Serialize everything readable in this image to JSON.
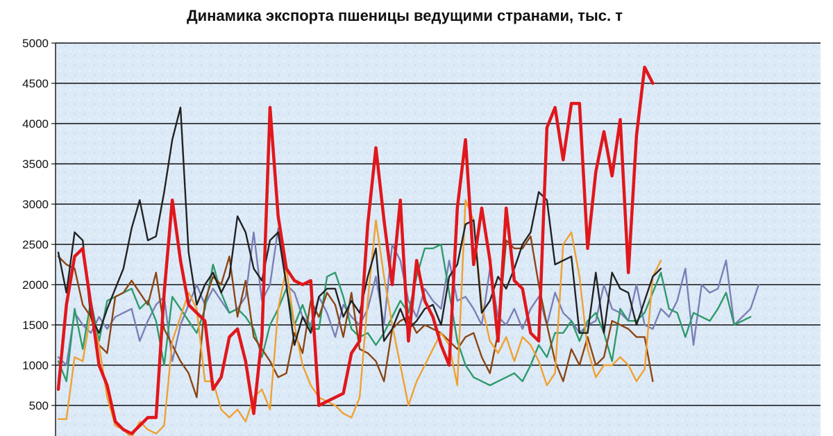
{
  "chart_data": {
    "type": "line",
    "title": "Динамика экспорта  пшеницы ведущими странами,  тыс. т",
    "xlabel": "",
    "ylabel": "",
    "ylim": [
      0,
      5000
    ],
    "yticks": [
      500,
      1000,
      1500,
      2000,
      2500,
      3000,
      3500,
      4000,
      4500,
      5000
    ],
    "grid": true,
    "legend": "none",
    "n_points": 94,
    "series": [
      {
        "color": "#7b7fb6",
        "values": [
          1100,
          1000,
          1650,
          1500,
          1400,
          1600,
          1450,
          1600,
          1650,
          1700,
          1300,
          1550,
          1750,
          1850,
          1050,
          1500,
          1750,
          2000,
          1750,
          1950,
          1800,
          1650,
          1700,
          1850,
          2650,
          1800,
          2000,
          2700,
          2000,
          1900,
          1600,
          1500,
          1850,
          1650,
          1350,
          1750,
          1600,
          1500,
          1700,
          2100,
          1500,
          2500,
          2300,
          1800,
          1600,
          1950,
          1800,
          1700,
          2300,
          1800,
          1850,
          1700,
          1500,
          2200,
          1600,
          1500,
          1700,
          1450,
          1700,
          1850,
          1500,
          1900,
          1650,
          1550,
          1400,
          1500,
          1550,
          2000,
          1700,
          1650,
          1550,
          2000,
          1500,
          1450,
          1700,
          1600,
          1800,
          2200,
          1250,
          2000,
          1900,
          1950,
          2300,
          1500,
          1600,
          1700,
          2000
        ]
      },
      {
        "color": "#2e9a6b",
        "values": [
          1050,
          800,
          1700,
          1200,
          1800,
          1300,
          1800,
          1850,
          1900,
          1950,
          1700,
          1800,
          1550,
          1000,
          1850,
          1700,
          1550,
          1400,
          1700,
          2250,
          1900,
          1650,
          1700,
          1600,
          1450,
          1100,
          1500,
          1700,
          1950,
          1500,
          1750,
          1450,
          1450,
          2100,
          2150,
          1850,
          1450,
          1350,
          1400,
          1250,
          1400,
          1600,
          1800,
          1650,
          2100,
          2450,
          2450,
          2500,
          1900,
          1300,
          1000,
          850,
          800,
          750,
          800,
          850,
          900,
          800,
          1000,
          1250,
          1100,
          1400,
          1400,
          1550,
          1300,
          1550,
          1650,
          1400,
          1050,
          1700,
          1550,
          1550,
          1650,
          1900,
          2150,
          1700,
          1650,
          1350,
          1650,
          1600,
          1550,
          1700,
          1900,
          1500,
          1550,
          1600
        ]
      },
      {
        "color": "#8b4513",
        "values": [
          2350,
          2250,
          2200,
          1750,
          1600,
          1250,
          1150,
          1850,
          1900,
          2050,
          1900,
          1750,
          2150,
          1450,
          1250,
          1050,
          900,
          600,
          1800,
          2100,
          2000,
          2350,
          1600,
          2050,
          1350,
          1200,
          1050,
          850,
          900,
          1400,
          1150,
          1800,
          1600,
          1900,
          1750,
          1350,
          1900,
          1200,
          1150,
          1050,
          800,
          1450,
          1550,
          1600,
          1400,
          1500,
          1450,
          1400,
          1300,
          1200,
          1350,
          1400,
          1100,
          900,
          1400,
          2550,
          2450,
          2450,
          2600,
          2000,
          1500,
          1050,
          800,
          1200,
          1000,
          1350,
          1000,
          1100,
          1550,
          1500,
          1450,
          1350,
          1350,
          800
        ]
      },
      {
        "color": "#f0a030",
        "values": [
          330,
          330,
          1100,
          1050,
          1650,
          1250,
          600,
          250,
          200,
          100,
          300,
          200,
          150,
          250,
          1300,
          1600,
          1900,
          1700,
          800,
          800,
          450,
          350,
          450,
          300,
          600,
          700,
          450,
          1700,
          2200,
          1500,
          1000,
          750,
          600,
          550,
          500,
          400,
          350,
          600,
          1800,
          2800,
          2100,
          1500,
          1000,
          500,
          800,
          1000,
          1200,
          1400,
          1250,
          750,
          3050,
          2800,
          1750,
          1300,
          1150,
          1350,
          1050,
          1350,
          1250,
          1050,
          750,
          900,
          2500,
          2650,
          2100,
          1200,
          850,
          1000,
          1000,
          1100,
          1000,
          800,
          950,
          2100,
          2300
        ]
      },
      {
        "color": "#222222",
        "values": [
          2400,
          1900,
          2650,
          2550,
          1600,
          1400,
          1700,
          1950,
          2200,
          2700,
          3050,
          2550,
          2600,
          3150,
          3800,
          4200,
          2400,
          1750,
          2000,
          2150,
          1900,
          2100,
          2850,
          2650,
          2200,
          2050,
          2550,
          2650,
          2000,
          1250,
          1600,
          1400,
          1850,
          1950,
          1950,
          1600,
          1800,
          1650,
          2100,
          2450,
          1300,
          1450,
          1700,
          1450,
          1550,
          1700,
          1750,
          1500,
          2100,
          2250,
          2750,
          2800,
          1650,
          1800,
          2100,
          1950,
          2200,
          2500,
          2650,
          3150,
          3050,
          2250,
          2300,
          2350,
          1400,
          1400,
          2150,
          1400,
          2150,
          1950,
          1900,
          1500,
          1800,
          2100,
          2200
        ]
      },
      {
        "color": "#e0171c",
        "values": [
          700,
          1750,
          2350,
          2450,
          1750,
          1000,
          750,
          300,
          200,
          150,
          250,
          350,
          350,
          1900,
          3050,
          2300,
          1750,
          1650,
          1550,
          700,
          850,
          1350,
          1450,
          1050,
          400,
          1350,
          4200,
          2850,
          2200,
          2050,
          2000,
          2050,
          500,
          550,
          600,
          650,
          1150,
          1300,
          2750,
          3700,
          2800,
          2000,
          3050,
          1300,
          2300,
          1800,
          1600,
          1250,
          1000,
          2950,
          3800,
          2250,
          2950,
          2300,
          1300,
          2950,
          2050,
          1950,
          1400,
          1300,
          3950,
          4200,
          3550,
          4250,
          4250,
          2450,
          3400,
          3900,
          3350,
          4050,
          2150,
          3850,
          4700,
          4500
        ]
      }
    ]
  }
}
